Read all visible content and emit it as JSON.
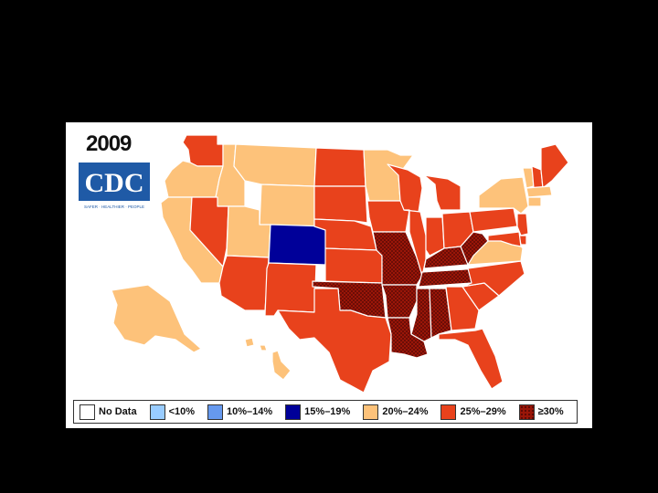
{
  "map": {
    "year": "2009",
    "logo_text": "CDC",
    "logo_tagline": "SAFER · HEALTHIER · PEOPLE",
    "colors": {
      "no_data": "#ffffff",
      "lt10": "#99ccff",
      "10_14": "#6699ee",
      "15_19": "#000099",
      "20_24": "#fdc27a",
      "25_29": "#e8421c",
      "ge30": "#9a1608"
    },
    "states": {
      "WA": "25_29",
      "OR": "20_24",
      "CA": "20_24",
      "ID": "20_24",
      "NV": "25_29",
      "MT": "20_24",
      "WY": "20_24",
      "UT": "20_24",
      "AZ": "25_29",
      "CO": "15_19",
      "NM": "25_29",
      "ND": "25_29",
      "SD": "25_29",
      "NE": "25_29",
      "KS": "25_29",
      "OK": "ge30",
      "TX": "25_29",
      "MN": "20_24",
      "IA": "25_29",
      "MO": "ge30",
      "AR": "ge30",
      "LA": "ge30",
      "WI": "25_29",
      "IL": "25_29",
      "MI": "25_29",
      "IN": "25_29",
      "OH": "25_29",
      "KY": "ge30",
      "TN": "ge30",
      "MS": "ge30",
      "AL": "ge30",
      "GA": "25_29",
      "FL": "25_29",
      "SC": "25_29",
      "NC": "25_29",
      "VA": "20_24",
      "WV": "ge30",
      "PA": "25_29",
      "NY": "20_24",
      "VT": "20_24",
      "NH": "25_29",
      "ME": "25_29",
      "MA": "20_24",
      "CT": "20_24",
      "NJ": "25_29",
      "DE": "25_29",
      "MD": "25_29",
      "AK": "20_24",
      "HI": "20_24"
    }
  },
  "legend": [
    {
      "key": "no_data",
      "label": "No Data"
    },
    {
      "key": "lt10",
      "label": "<10%"
    },
    {
      "key": "10_14",
      "label": "10%–14%"
    },
    {
      "key": "15_19",
      "label": "15%–19%"
    },
    {
      "key": "20_24",
      "label": "20%–24%"
    },
    {
      "key": "25_29",
      "label": "25%–29%"
    },
    {
      "key": "ge30",
      "label": "≥30%"
    }
  ]
}
